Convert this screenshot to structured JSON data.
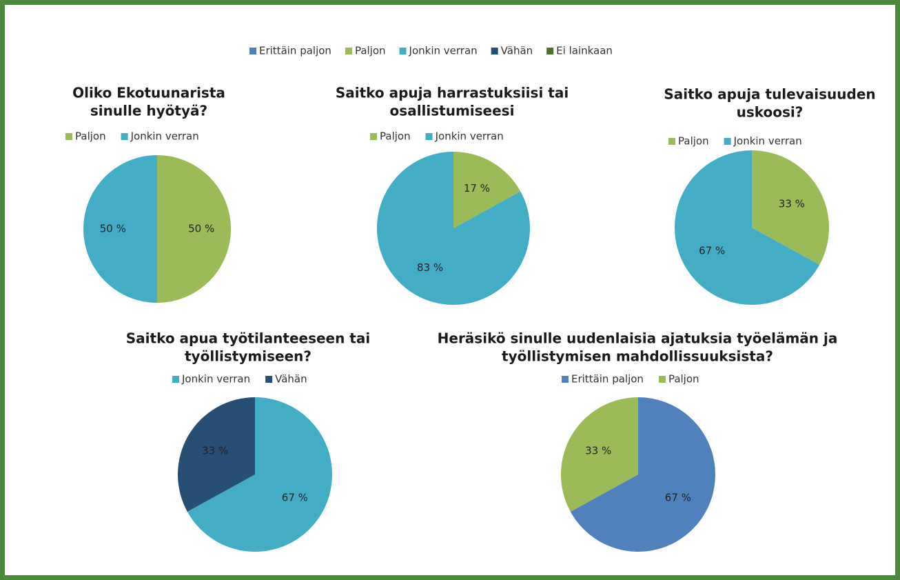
{
  "legend": [
    {
      "name": "Erittäin paljon",
      "color": "#4f81bd"
    },
    {
      "name": "Paljon",
      "color": "#9bbb59"
    },
    {
      "name": "Jonkin verran",
      "color": "#42adc5"
    },
    {
      "name": "Vähän",
      "color": "#264f73"
    },
    {
      "name": "Ei lainkaan",
      "color": "#4f6f2c"
    }
  ],
  "chart_data": [
    {
      "type": "pie",
      "title": [
        "Oliko Ekotuunarista",
        "sinulle hyötyä?"
      ],
      "categories": [
        "Paljon",
        "Jonkin verran"
      ],
      "values": [
        50,
        50
      ],
      "value_labels": [
        "50 %",
        "50 %"
      ],
      "colors": [
        "#9bbb59",
        "#42adc5"
      ]
    },
    {
      "type": "pie",
      "title": [
        "Saitko apuja harrastuksiisi tai",
        "osallistumiseesi"
      ],
      "categories": [
        "Paljon",
        "Jonkin verran"
      ],
      "values": [
        17,
        83
      ],
      "value_labels": [
        "17 %",
        "83 %"
      ],
      "colors": [
        "#9bbb59",
        "#42adc5"
      ]
    },
    {
      "type": "pie",
      "title": [
        "Saitko apuja tulevaisuuden",
        "uskoosi?"
      ],
      "categories": [
        "Paljon",
        "Jonkin verran"
      ],
      "values": [
        33,
        67
      ],
      "value_labels": [
        "33 %",
        "67 %"
      ],
      "colors": [
        "#9bbb59",
        "#42adc5"
      ]
    },
    {
      "type": "pie",
      "title": [
        "Saitko apua työtilanteeseen tai",
        "työllistymiseen?"
      ],
      "categories": [
        "Jonkin verran",
        "Vähän"
      ],
      "values": [
        67,
        33
      ],
      "value_labels": [
        "67 %",
        "33 %"
      ],
      "colors": [
        "#42adc5",
        "#264f73"
      ]
    },
    {
      "type": "pie",
      "title": [
        "Heräsikö sinulle uudenlaisia ajatuksia työelämän ja",
        "työllistymisen mahdollissuuksista?"
      ],
      "categories": [
        "Erittäin paljon",
        "Paljon"
      ],
      "values": [
        67,
        33
      ],
      "value_labels": [
        "67 %",
        "33 %"
      ],
      "colors": [
        "#4f81bd",
        "#9bbb59"
      ]
    }
  ]
}
